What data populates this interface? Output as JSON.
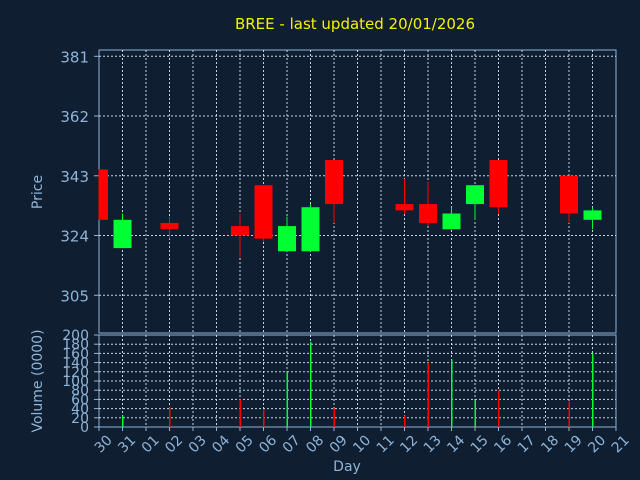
{
  "chart_data": [
    {
      "type": "candlestick",
      "title": "BREE - last updated 20/01/2026",
      "ylabel": "Price",
      "ylim": [
        293,
        383
      ],
      "yticks": [
        305,
        324,
        343,
        362,
        381
      ],
      "grid": true,
      "colors": {
        "up": "#00ff33",
        "down": "#ff0000"
      },
      "categories": [
        "30",
        "31",
        "01",
        "02",
        "03",
        "04",
        "05",
        "06",
        "07",
        "08",
        "09",
        "10",
        "11",
        "12",
        "13",
        "14",
        "15",
        "16",
        "17",
        "18",
        "19",
        "20",
        "21"
      ],
      "candles": [
        {
          "x": "30",
          "open": 345,
          "high": 345,
          "low": 329,
          "close": 329
        },
        {
          "x": "31",
          "open": 320,
          "high": 331,
          "low": 320,
          "close": 329
        },
        {
          "x": "02",
          "open": 328,
          "high": 330,
          "low": 323,
          "close": 326
        },
        {
          "x": "05",
          "open": 327,
          "high": 331,
          "low": 317,
          "close": 324
        },
        {
          "x": "06",
          "open": 340,
          "high": 340,
          "low": 322,
          "close": 323
        },
        {
          "x": "07",
          "open": 319,
          "high": 330,
          "low": 319,
          "close": 327
        },
        {
          "x": "08",
          "open": 319,
          "high": 334,
          "low": 319,
          "close": 333
        },
        {
          "x": "09",
          "open": 348,
          "high": 348,
          "low": 328,
          "close": 334
        },
        {
          "x": "12",
          "open": 334,
          "high": 342,
          "low": 331,
          "close": 332
        },
        {
          "x": "13",
          "open": 334,
          "high": 341,
          "low": 327,
          "close": 328
        },
        {
          "x": "14",
          "open": 326,
          "high": 333,
          "low": 326,
          "close": 331
        },
        {
          "x": "15",
          "open": 334,
          "high": 340,
          "low": 329,
          "close": 340
        },
        {
          "x": "16",
          "open": 348,
          "high": 348,
          "low": 331,
          "close": 333
        },
        {
          "x": "19",
          "open": 343,
          "high": 343,
          "low": 328,
          "close": 331
        },
        {
          "x": "20",
          "open": 329,
          "high": 333,
          "low": 326,
          "close": 332
        }
      ]
    },
    {
      "type": "bar",
      "xlabel": "Day",
      "ylabel": "Volume (0000)",
      "ylim": [
        0,
        200
      ],
      "yticks": [
        0,
        20,
        40,
        60,
        80,
        100,
        120,
        140,
        160,
        180,
        200
      ],
      "grid": true,
      "categories": [
        "30",
        "31",
        "01",
        "02",
        "03",
        "04",
        "05",
        "06",
        "07",
        "08",
        "09",
        "10",
        "11",
        "12",
        "13",
        "14",
        "15",
        "16",
        "17",
        "18",
        "19",
        "20",
        "21"
      ],
      "bars": [
        {
          "x": "31",
          "value": 25,
          "color": "#00ff33"
        },
        {
          "x": "02",
          "value": 43,
          "color": "#ff0000"
        },
        {
          "x": "05",
          "value": 60,
          "color": "#ff0000"
        },
        {
          "x": "06",
          "value": 38,
          "color": "#ff0000"
        },
        {
          "x": "07",
          "value": 120,
          "color": "#00ff33"
        },
        {
          "x": "08",
          "value": 185,
          "color": "#00ff33"
        },
        {
          "x": "09",
          "value": 40,
          "color": "#ff0000"
        },
        {
          "x": "12",
          "value": 25,
          "color": "#ff0000"
        },
        {
          "x": "13",
          "value": 140,
          "color": "#ff0000"
        },
        {
          "x": "14",
          "value": 147,
          "color": "#00ff33"
        },
        {
          "x": "15",
          "value": 58,
          "color": "#00ff33"
        },
        {
          "x": "16",
          "value": 80,
          "color": "#ff0000"
        },
        {
          "x": "19",
          "value": 55,
          "color": "#ff0000"
        },
        {
          "x": "20",
          "value": 160,
          "color": "#00ff33"
        }
      ]
    }
  ]
}
